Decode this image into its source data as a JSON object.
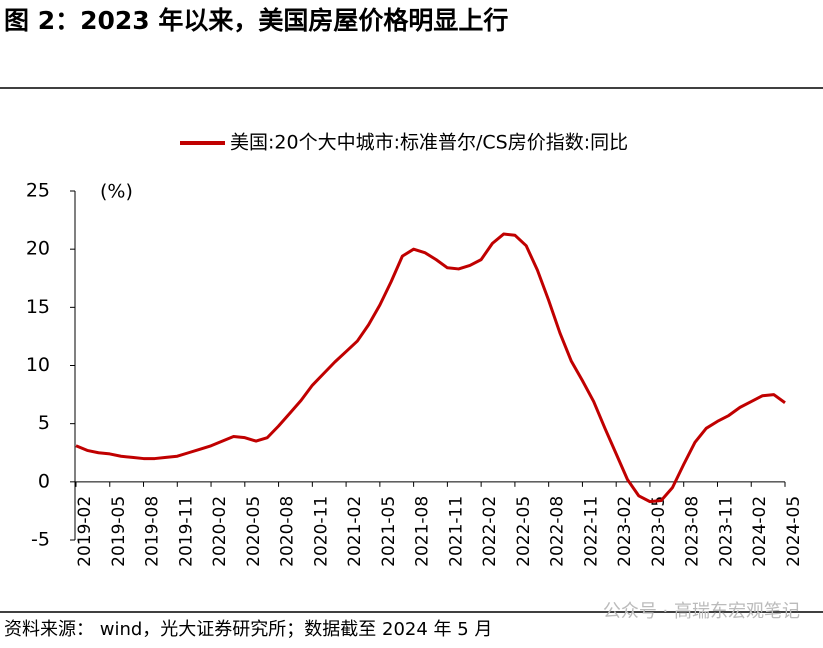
{
  "header": {
    "title": "图 2：2023 年以来，美国房屋价格明显上行"
  },
  "chart_data": {
    "type": "line",
    "categories": [
      "2019-02",
      null,
      null,
      "2019-05",
      null,
      null,
      "2019-08",
      null,
      null,
      "2019-11",
      null,
      null,
      "2020-02",
      null,
      null,
      "2020-05",
      null,
      null,
      "2020-08",
      null,
      null,
      "2020-11",
      null,
      null,
      "2021-02",
      null,
      null,
      "2021-05",
      null,
      null,
      "2021-08",
      null,
      null,
      "2021-11",
      null,
      null,
      "2022-02",
      null,
      null,
      "2022-05",
      null,
      null,
      "2022-08",
      null,
      null,
      "2022-11",
      null,
      null,
      "2023-02",
      null,
      null,
      "2023-05",
      null,
      null,
      "2023-08",
      null,
      null,
      "2023-11",
      null,
      null,
      "2024-02",
      null,
      null,
      "2024-05"
    ],
    "series": [
      {
        "name": "美国:20个大中城市:标准普尔/CS房价指数:同比",
        "color": "#c00000",
        "values": [
          3.1,
          2.7,
          2.5,
          2.4,
          2.2,
          2.1,
          2.0,
          2.0,
          2.1,
          2.2,
          2.5,
          2.8,
          3.1,
          3.5,
          3.9,
          3.8,
          3.5,
          3.8,
          4.8,
          5.9,
          7.0,
          8.3,
          9.3,
          10.3,
          11.2,
          12.1,
          13.5,
          15.2,
          17.2,
          19.4,
          20.0,
          19.7,
          19.1,
          18.4,
          18.3,
          18.6,
          19.1,
          20.5,
          21.3,
          21.2,
          20.3,
          18.2,
          15.6,
          12.8,
          10.4,
          8.7,
          6.9,
          4.6,
          2.4,
          0.2,
          -1.2,
          -1.7,
          -1.6,
          -0.5,
          1.5,
          3.4,
          4.6,
          5.2,
          5.7,
          6.4,
          6.9,
          7.4,
          7.5,
          6.8
        ]
      }
    ],
    "ylim": [
      -5,
      25
    ],
    "yticks": [
      -5,
      0,
      5,
      10,
      15,
      20,
      25
    ],
    "y_unit_label": "(%)",
    "legend": "top"
  },
  "footer": {
    "source": "资料来源： wind，光大证券研究所；数据截至 2024 年 5 月",
    "watermark": "公众号 · 高瑞东宏观笔记"
  }
}
